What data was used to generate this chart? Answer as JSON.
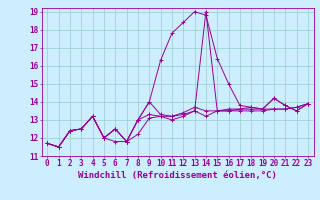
{
  "background_color": "#cceeff",
  "line_color": "#990099",
  "grid_color": "#99cccc",
  "xlabel": "Windchill (Refroidissement éolien,°C)",
  "xlabel_fontsize": 6.5,
  "tick_fontsize": 5.5,
  "xlim": [
    -0.5,
    23.5
  ],
  "ylim": [
    11,
    19.2
  ],
  "yticks": [
    11,
    12,
    13,
    14,
    15,
    16,
    17,
    18,
    19
  ],
  "xticks": [
    0,
    1,
    2,
    3,
    4,
    5,
    6,
    7,
    8,
    9,
    10,
    11,
    12,
    13,
    14,
    15,
    16,
    17,
    18,
    19,
    20,
    21,
    22,
    23
  ],
  "series": [
    [
      11.7,
      11.5,
      12.4,
      12.5,
      13.2,
      12.0,
      11.8,
      11.8,
      12.2,
      13.1,
      13.2,
      13.0,
      13.2,
      13.5,
      13.2,
      13.5,
      13.5,
      13.5,
      13.5,
      13.5,
      13.6,
      13.6,
      13.7,
      13.9
    ],
    [
      11.7,
      11.5,
      12.4,
      12.5,
      13.2,
      12.0,
      12.5,
      11.8,
      13.0,
      14.0,
      16.3,
      17.8,
      18.4,
      19.0,
      18.8,
      16.4,
      15.0,
      13.8,
      13.7,
      13.6,
      13.6,
      13.6,
      13.7,
      13.9
    ],
    [
      11.7,
      11.5,
      12.4,
      12.5,
      13.2,
      12.0,
      12.5,
      11.8,
      13.0,
      14.0,
      13.3,
      13.2,
      13.3,
      13.5,
      19.0,
      13.5,
      13.5,
      13.6,
      13.6,
      13.6,
      14.2,
      13.8,
      13.5,
      13.9
    ],
    [
      11.7,
      11.5,
      12.4,
      12.5,
      13.2,
      12.0,
      12.5,
      11.8,
      13.0,
      13.3,
      13.2,
      13.2,
      13.4,
      13.7,
      13.5,
      13.5,
      13.6,
      13.6,
      13.7,
      13.6,
      14.2,
      13.8,
      13.5,
      13.9
    ]
  ]
}
